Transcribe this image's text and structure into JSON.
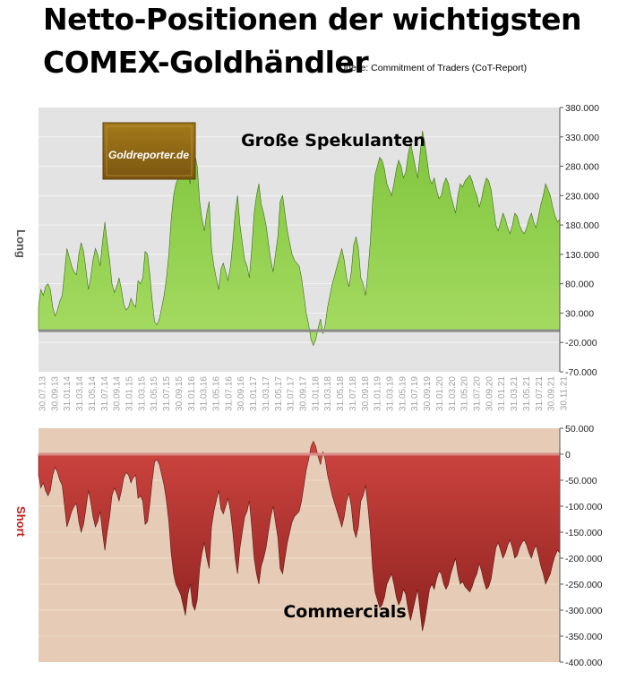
{
  "title_line1": "Netto-Positionen der wichtigsten",
  "title_line2": "COMEX-Goldhändler",
  "source": "Quelle: Commitment of Traders (CoT-Report)",
  "logo_text": "Goldreporter.de",
  "colors": {
    "long_fill": "#8ed04a",
    "short_fill": "#bf3a36",
    "top_bg": "#e3e3e3",
    "bottom_bg": "#e6ccb6"
  },
  "chart_data": [
    {
      "type": "area",
      "name": "top",
      "title": "Große Spekulanten",
      "ylabel": "Long",
      "ylim": [
        -70000,
        380000
      ],
      "yticks": [
        "380.000",
        "330.000",
        "280.000",
        "230.000",
        "180.000",
        "130.000",
        "80.000",
        "30.000",
        "-20.000",
        "-70.000"
      ],
      "x_tick_labels": [
        "30.07.13",
        "30.09.13",
        "31.01.14",
        "31.03.14",
        "31.05.14",
        "31.07.14",
        "30.09.14",
        "31.01.15",
        "31.03.15",
        "31.05.15",
        "31.07.15",
        "30.09.15",
        "31.01.16",
        "31.03.16",
        "31.05.16",
        "31.07.16",
        "30.09.16",
        "31.01.17",
        "31.03.17",
        "31.05.17",
        "31.07.17",
        "30.09.17",
        "31.01.18",
        "31.03.18",
        "31.05.18",
        "31.07.18",
        "30.09.18",
        "31.01.19",
        "31.03.19",
        "31.05.19",
        "31.07.19",
        "30.09.19",
        "31.01.20",
        "31.03.20",
        "31.05.20",
        "31.07.20",
        "30.09.20",
        "31.01.21",
        "31.03.21",
        "31.05.21",
        "31.07.21",
        "30.09.21",
        "30.11.21"
      ],
      "values": [
        40000,
        70000,
        60000,
        75000,
        80000,
        70000,
        40000,
        25000,
        35000,
        50000,
        60000,
        100000,
        140000,
        125000,
        110000,
        100000,
        95000,
        130000,
        150000,
        135000,
        105000,
        70000,
        90000,
        120000,
        140000,
        130000,
        110000,
        150000,
        185000,
        150000,
        120000,
        80000,
        65000,
        75000,
        90000,
        70000,
        45000,
        35000,
        40000,
        55000,
        45000,
        40000,
        85000,
        80000,
        90000,
        135000,
        130000,
        95000,
        50000,
        15000,
        10000,
        20000,
        40000,
        60000,
        90000,
        130000,
        190000,
        230000,
        250000,
        260000,
        270000,
        290000,
        310000,
        270000,
        250000,
        290000,
        300000,
        280000,
        220000,
        190000,
        170000,
        200000,
        220000,
        140000,
        110000,
        90000,
        70000,
        105000,
        115000,
        100000,
        85000,
        110000,
        150000,
        200000,
        230000,
        180000,
        150000,
        120000,
        110000,
        90000,
        140000,
        200000,
        230000,
        250000,
        215000,
        200000,
        180000,
        150000,
        120000,
        100000,
        130000,
        160000,
        220000,
        230000,
        200000,
        170000,
        150000,
        130000,
        120000,
        115000,
        110000,
        90000,
        60000,
        30000,
        10000,
        -15000,
        -25000,
        -15000,
        5000,
        20000,
        -5000,
        10000,
        40000,
        60000,
        80000,
        95000,
        110000,
        125000,
        140000,
        120000,
        90000,
        75000,
        100000,
        145000,
        160000,
        140000,
        90000,
        80000,
        60000,
        100000,
        150000,
        220000,
        265000,
        280000,
        295000,
        290000,
        275000,
        250000,
        240000,
        230000,
        250000,
        275000,
        290000,
        280000,
        260000,
        270000,
        300000,
        320000,
        300000,
        280000,
        260000,
        300000,
        340000,
        320000,
        290000,
        260000,
        250000,
        260000,
        240000,
        225000,
        230000,
        250000,
        260000,
        250000,
        230000,
        215000,
        200000,
        230000,
        250000,
        245000,
        255000,
        260000,
        265000,
        255000,
        240000,
        230000,
        210000,
        225000,
        245000,
        260000,
        255000,
        240000,
        210000,
        180000,
        170000,
        185000,
        200000,
        190000,
        175000,
        165000,
        180000,
        200000,
        195000,
        180000,
        170000,
        165000,
        175000,
        190000,
        200000,
        185000,
        175000,
        195000,
        215000,
        230000,
        250000,
        240000,
        230000,
        210000,
        195000,
        185000,
        190000
      ]
    },
    {
      "type": "area",
      "name": "bottom",
      "title": "Commercials",
      "ylabel": "Short",
      "ylim": [
        -400000,
        50000
      ],
      "yticks": [
        "50.000",
        "0",
        "-50.000",
        "-100.000",
        "-150.000",
        "-200.000",
        "-250.000",
        "-300.000",
        "-350.000",
        "-400.000"
      ],
      "values": [
        -40000,
        -65000,
        -55000,
        -70000,
        -80000,
        -70000,
        -40000,
        -25000,
        -35000,
        -50000,
        -60000,
        -100000,
        -140000,
        -125000,
        -110000,
        -100000,
        -95000,
        -130000,
        -150000,
        -135000,
        -105000,
        -70000,
        -90000,
        -120000,
        -140000,
        -130000,
        -110000,
        -150000,
        -185000,
        -150000,
        -120000,
        -80000,
        -65000,
        -75000,
        -90000,
        -70000,
        -45000,
        -35000,
        -40000,
        -55000,
        -45000,
        -40000,
        -85000,
        -80000,
        -90000,
        -135000,
        -130000,
        -95000,
        -50000,
        -15000,
        -10000,
        -20000,
        -40000,
        -60000,
        -90000,
        -130000,
        -190000,
        -230000,
        -250000,
        -260000,
        -270000,
        -290000,
        -310000,
        -270000,
        -250000,
        -290000,
        -300000,
        -280000,
        -220000,
        -190000,
        -170000,
        -200000,
        -220000,
        -140000,
        -110000,
        -90000,
        -70000,
        -105000,
        -115000,
        -100000,
        -85000,
        -110000,
        -150000,
        -200000,
        -230000,
        -180000,
        -150000,
        -120000,
        -110000,
        -90000,
        -140000,
        -200000,
        -230000,
        -250000,
        -215000,
        -200000,
        -180000,
        -150000,
        -120000,
        -100000,
        -130000,
        -160000,
        -220000,
        -230000,
        -200000,
        -170000,
        -150000,
        -130000,
        -120000,
        -115000,
        -110000,
        -90000,
        -60000,
        -30000,
        -10000,
        15000,
        25000,
        15000,
        -5000,
        -20000,
        5000,
        -10000,
        -40000,
        -60000,
        -80000,
        -95000,
        -110000,
        -125000,
        -140000,
        -120000,
        -90000,
        -75000,
        -100000,
        -145000,
        -160000,
        -140000,
        -90000,
        -80000,
        -60000,
        -100000,
        -150000,
        -220000,
        -265000,
        -280000,
        -295000,
        -290000,
        -275000,
        -250000,
        -240000,
        -230000,
        -250000,
        -275000,
        -290000,
        -280000,
        -260000,
        -270000,
        -300000,
        -320000,
        -300000,
        -280000,
        -260000,
        -300000,
        -340000,
        -320000,
        -290000,
        -260000,
        -250000,
        -260000,
        -240000,
        -225000,
        -230000,
        -250000,
        -260000,
        -250000,
        -230000,
        -215000,
        -200000,
        -230000,
        -250000,
        -245000,
        -255000,
        -260000,
        -265000,
        -255000,
        -240000,
        -230000,
        -210000,
        -225000,
        -245000,
        -260000,
        -255000,
        -240000,
        -210000,
        -180000,
        -170000,
        -185000,
        -200000,
        -190000,
        -175000,
        -165000,
        -180000,
        -200000,
        -195000,
        -180000,
        -170000,
        -165000,
        -175000,
        -190000,
        -200000,
        -185000,
        -175000,
        -195000,
        -215000,
        -230000,
        -250000,
        -240000,
        -230000,
        -210000,
        -195000,
        -185000,
        -190000
      ]
    }
  ]
}
